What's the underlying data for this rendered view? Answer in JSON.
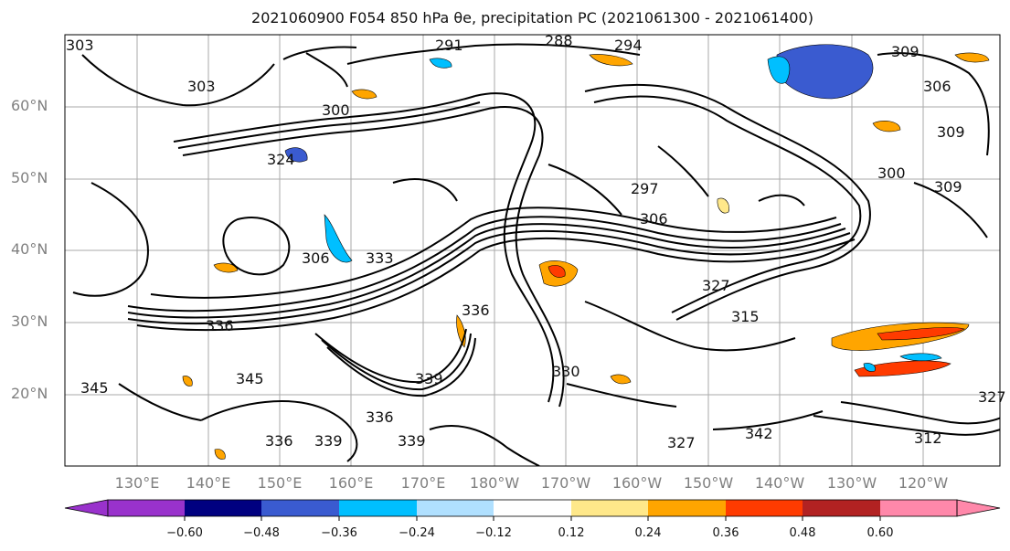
{
  "title": "2021060900 F054 850 hPa θe, precipitation PC (2021061300 - 2021061400)",
  "lat_labels": [
    "60°N",
    "50°N",
    "40°N",
    "30°N",
    "20°N"
  ],
  "lon_labels": [
    "130°E",
    "140°E",
    "150°E",
    "160°E",
    "170°E",
    "180°W",
    "170°W",
    "160°W",
    "150°W",
    "140°W",
    "130°W",
    "120°W"
  ],
  "contour_labels": [
    "303",
    "291",
    "288",
    "294",
    "309",
    "306",
    "303",
    "300",
    "324",
    "309",
    "306",
    "333",
    "297",
    "306",
    "327",
    "315",
    "336",
    "336",
    "345",
    "339",
    "339",
    "330",
    "336",
    "345",
    "339",
    "336",
    "327",
    "342",
    "312",
    "327",
    "309",
    "300"
  ],
  "colorbar": {
    "colors": [
      "#9932cc",
      "#000080",
      "#3a5bd0",
      "#00bfff",
      "#b0e0ff",
      "#ffffff",
      "#ffe88a",
      "#ffa500",
      "#ff3b00",
      "#b22222",
      "#ff88aa"
    ],
    "tick_labels": [
      "−0.60",
      "−0.48",
      "−0.36",
      "−0.24",
      "−0.12",
      "0.12",
      "0.24",
      "0.36",
      "0.48",
      "0.60"
    ]
  }
}
